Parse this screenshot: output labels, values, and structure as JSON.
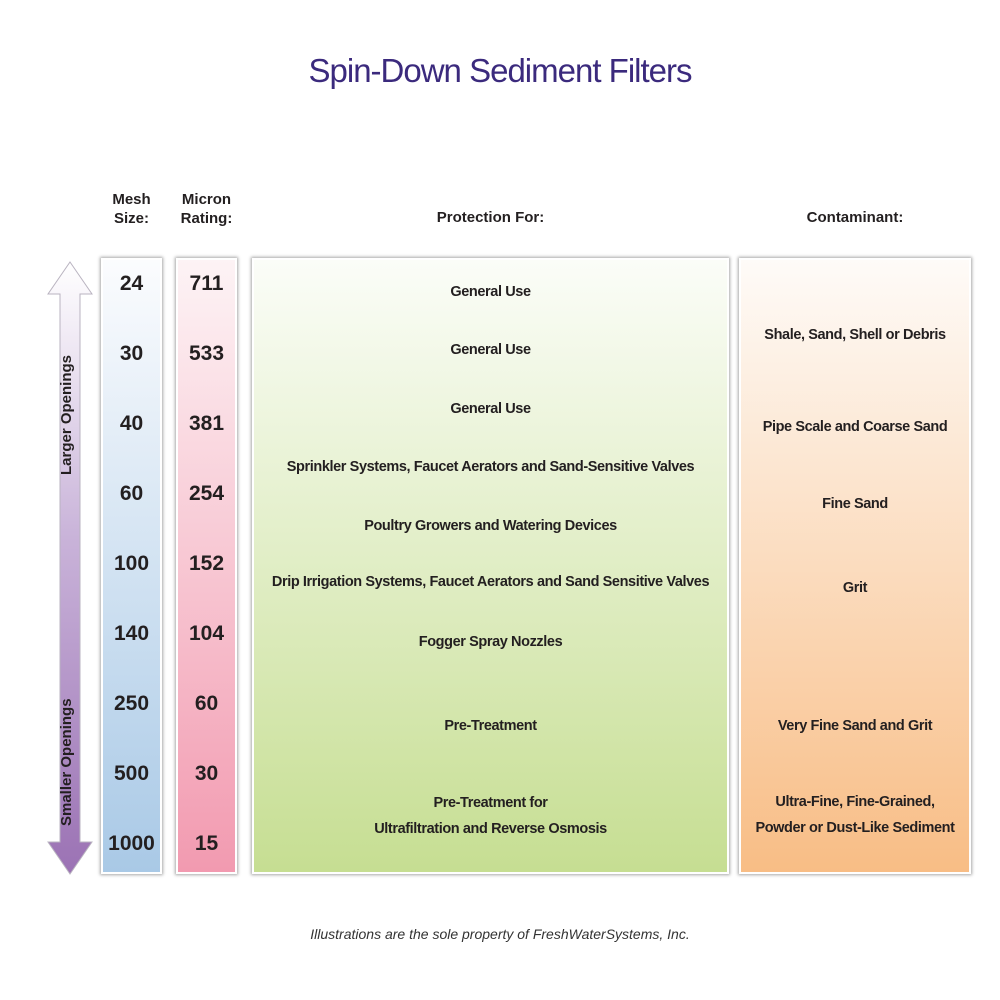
{
  "title": "Spin-Down Sediment Filters",
  "headers": {
    "mesh": [
      "Mesh",
      "Size:"
    ],
    "micron": [
      "Micron",
      "Rating:"
    ],
    "protection": "Protection For:",
    "contaminant": "Contaminant:"
  },
  "arrow": {
    "top_label": "Larger Openings",
    "bottom_label": "Smaller Openings",
    "colors": [
      "#ffffff",
      "#9b72b4"
    ]
  },
  "rows": [
    {
      "mesh": "24",
      "micron": "711"
    },
    {
      "mesh": "30",
      "micron": "533"
    },
    {
      "mesh": "40",
      "micron": "381"
    },
    {
      "mesh": "60",
      "micron": "254"
    },
    {
      "mesh": "100",
      "micron": "152"
    },
    {
      "mesh": "140",
      "micron": "104"
    },
    {
      "mesh": "250",
      "micron": "60"
    },
    {
      "mesh": "500",
      "micron": "30"
    },
    {
      "mesh": "1000",
      "micron": "15"
    }
  ],
  "protection": [
    "General Use",
    "General Use",
    "General Use",
    "Sprinkler Systems,  Faucet Aerators  and  Sand-Sensitive Valves",
    "Poultry Growers  and  Watering Devices",
    "Drip Irrigation Systems, Faucet Aerators and Sand Sensitive Valves",
    "Fogger Spray Nozzles",
    "Pre-Treatment",
    [
      "Pre-Treatment for",
      "Ultrafiltration  and  Reverse Osmosis"
    ]
  ],
  "contaminant": [
    "Shale, Sand, Shell or Debris",
    "Pipe Scale and Coarse Sand",
    "Fine Sand",
    "Grit",
    "Very Fine Sand and Grit",
    [
      "Ultra-Fine, Fine-Grained,",
      "Powder or Dust-Like Sediment"
    ]
  ],
  "colors": {
    "title": "#3b2a7d",
    "mesh_column": "#a9c9e6",
    "micron_column": "#f29ab0",
    "protection_column": "#c6de92",
    "contaminant_column": "#f8bd85"
  },
  "footer": "Illustrations are the sole property of FreshWaterSystems, Inc."
}
